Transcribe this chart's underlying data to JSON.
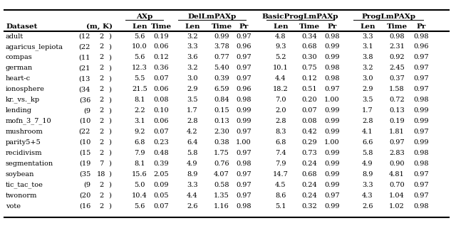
{
  "rows": [
    [
      "adult",
      "12",
      "2",
      "5.6",
      "0.19",
      "3.2",
      "0.99",
      "0.97",
      "4.8",
      "0.34",
      "0.98",
      "3.3",
      "0.98",
      "0.98"
    ],
    [
      "agaricus lepiota",
      "22",
      "2",
      "10.0",
      "0.06",
      "3.3",
      "3.78",
      "0.96",
      "9.3",
      "0.68",
      "0.99",
      "3.1",
      "2.31",
      "0.96"
    ],
    [
      "compas",
      "11",
      "2",
      "5.6",
      "0.12",
      "3.6",
      "0.77",
      "0.97",
      "5.2",
      "0.30",
      "0.99",
      "3.8",
      "0.92",
      "0.97"
    ],
    [
      "german",
      "21",
      "2",
      "12.3",
      "0.36",
      "3.2",
      "5.40",
      "0.97",
      "10.1",
      "0.75",
      "0.98",
      "3.2",
      "2.45",
      "0.97"
    ],
    [
      "heart-c",
      "13",
      "2",
      "5.5",
      "0.07",
      "3.0",
      "0.39",
      "0.97",
      "4.4",
      "0.12",
      "0.98",
      "3.0",
      "0.37",
      "0.97"
    ],
    [
      "ionosphere",
      "34",
      "2",
      "21.5",
      "0.06",
      "2.9",
      "6.59",
      "0.96",
      "18.2",
      "0.51",
      "0.97",
      "2.9",
      "1.58",
      "0.97"
    ],
    [
      "kr. vs. kp",
      "36",
      "2",
      "8.1",
      "0.08",
      "3.5",
      "0.84",
      "0.98",
      "7.0",
      "0.20",
      "1.00",
      "3.5",
      "0.72",
      "0.98"
    ],
    [
      "lending",
      "9",
      "2",
      "2.2",
      "0.10",
      "1.7",
      "0.15",
      "0.99",
      "2.0",
      "0.07",
      "0.99",
      "1.7",
      "0.13",
      "0.99"
    ],
    [
      "mofn 3 7 10",
      "10",
      "2",
      "3.1",
      "0.06",
      "2.8",
      "0.13",
      "0.99",
      "2.8",
      "0.08",
      "0.99",
      "2.8",
      "0.19",
      "0.99"
    ],
    [
      "mushroom",
      "22",
      "2",
      "9.2",
      "0.07",
      "4.2",
      "2.30",
      "0.97",
      "8.3",
      "0.42",
      "0.99",
      "4.1",
      "1.81",
      "0.97"
    ],
    [
      "parity5+5",
      "10",
      "2",
      "6.8",
      "0.23",
      "6.4",
      "0.38",
      "1.00",
      "6.8",
      "0.29",
      "1.00",
      "6.6",
      "0.97",
      "0.99"
    ],
    [
      "recidivism",
      "15",
      "2",
      "7.9",
      "0.48",
      "5.8",
      "1.75",
      "0.97",
      "7.4",
      "0.73",
      "0.99",
      "5.8",
      "2.83",
      "0.98"
    ],
    [
      "segmentation",
      "19",
      "7",
      "8.1",
      "0.39",
      "4.9",
      "0.76",
      "0.98",
      "7.9",
      "0.24",
      "0.99",
      "4.9",
      "0.90",
      "0.98"
    ],
    [
      "soybean",
      "35",
      "18",
      "15.6",
      "2.05",
      "8.9",
      "4.07",
      "0.97",
      "14.7",
      "0.68",
      "0.99",
      "8.9",
      "4.81",
      "0.97"
    ],
    [
      "tic tac toe",
      "9",
      "2",
      "5.0",
      "0.09",
      "3.3",
      "0.58",
      "0.97",
      "4.5",
      "0.24",
      "0.99",
      "3.3",
      "0.70",
      "0.97"
    ],
    [
      "twonorm",
      "20",
      "2",
      "10.4",
      "0.05",
      "4.4",
      "1.35",
      "0.97",
      "8.6",
      "0.24",
      "0.97",
      "4.3",
      "1.04",
      "0.97"
    ],
    [
      "vote",
      "16",
      "2",
      "5.6",
      "0.07",
      "2.6",
      "1.16",
      "0.98",
      "5.1",
      "0.32",
      "0.99",
      "2.6",
      "1.02",
      "0.98"
    ]
  ],
  "dataset_names": [
    "adult",
    "agaricus·lepiota",
    "compas",
    "german",
    "heart-c",
    "ionosphere",
    "kr.·vs.·kp",
    "lending",
    "mofn·3·7·10",
    "mushroom",
    "parity5+5",
    "recidivism",
    "segmentation",
    "soybean",
    "tic·tac·toe",
    "twonorm",
    "vote"
  ],
  "m_vals": [
    "12",
    "22",
    "11",
    "21",
    "13",
    "34",
    "36",
    " 9",
    "10",
    "22",
    "10",
    "15",
    "19",
    "35",
    " 9",
    "20",
    "16"
  ],
  "k_vals": [
    " 2",
    " 2",
    " 2",
    " 2",
    " 2",
    " 2",
    " 2",
    " 2",
    " 2",
    " 2",
    " 2",
    " 2",
    " 7",
    "18",
    " 2",
    " 2",
    " 2"
  ],
  "fontsize": 7.0,
  "header_fontsize": 7.5
}
